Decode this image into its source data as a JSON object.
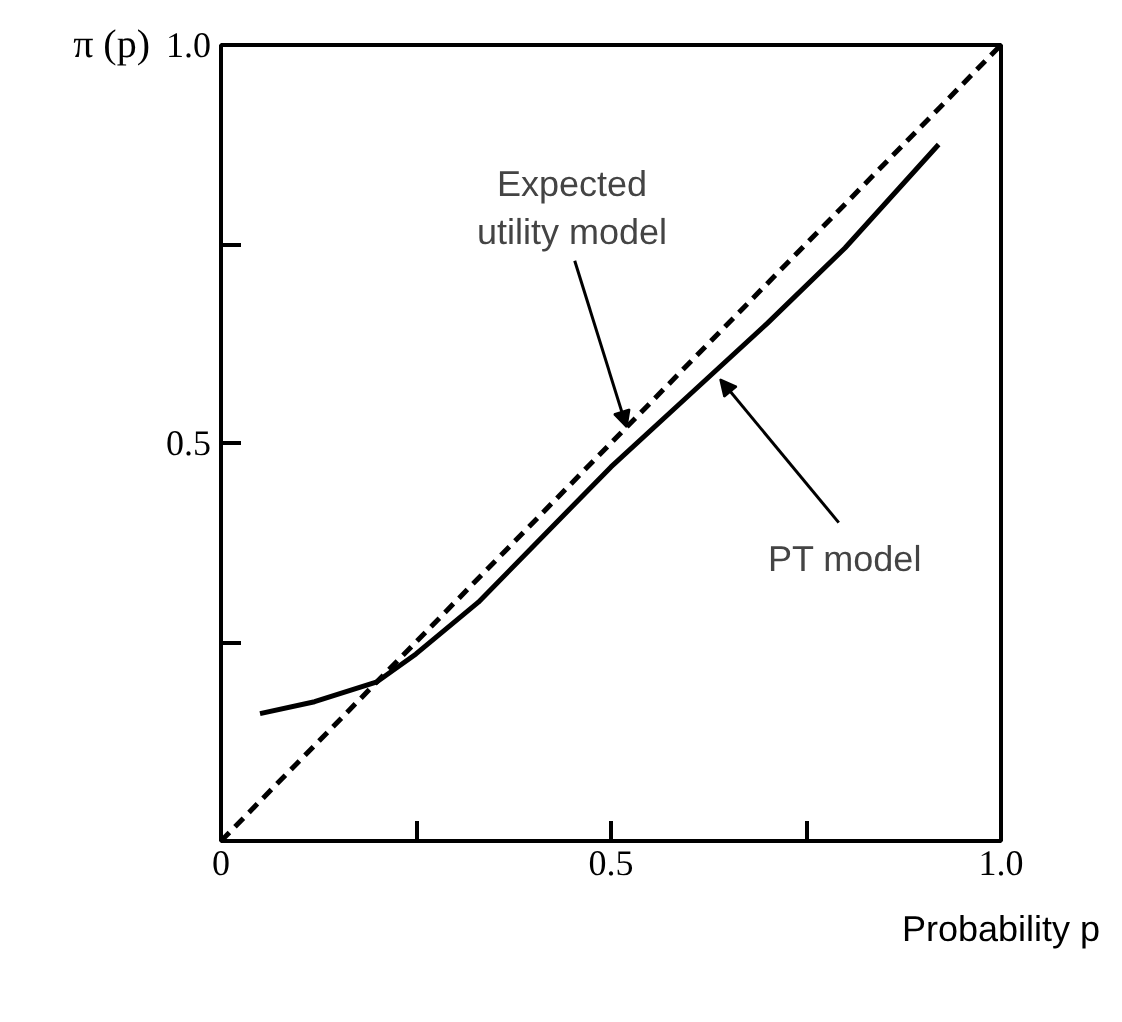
{
  "chart_data": {
    "type": "line",
    "xlabel": "Probability p",
    "ylabel": "π (p)",
    "xlim": [
      0,
      1
    ],
    "ylim": [
      0,
      1
    ],
    "xticks": [
      0,
      {
        "value": 0.25,
        "label": null
      },
      0.5,
      {
        "value": 0.75,
        "label": null
      },
      {
        "value": 1,
        "label": "1.0"
      }
    ],
    "yticks": [
      {
        "value": 0,
        "label": null
      },
      {
        "value": 0.25,
        "label": null
      },
      0.5,
      {
        "value": 0.75,
        "label": null
      },
      {
        "value": 1,
        "label": "1.0"
      }
    ],
    "grid": false,
    "series": [
      {
        "x": [
          0,
          1
        ],
        "values": [
          0,
          1
        ],
        "color": "#000000",
        "line_style": "dashed"
      },
      {
        "x": [
          0.05,
          0.12,
          0.2,
          0.25,
          0.33,
          0.4,
          0.5,
          0.6,
          0.7,
          0.8,
          0.92
        ],
        "values": [
          0.16,
          0.175,
          0.2,
          0.235,
          0.3,
          0.37,
          0.47,
          0.56,
          0.65,
          0.745,
          0.875
        ],
        "color": "#000000",
        "line_style": "solid"
      }
    ],
    "annotations": [
      {
        "text": "Expected utility model",
        "x": 0.52,
        "y": 0.52
      },
      {
        "text": "PT model",
        "x": 0.64,
        "y": 0.58
      }
    ]
  }
}
